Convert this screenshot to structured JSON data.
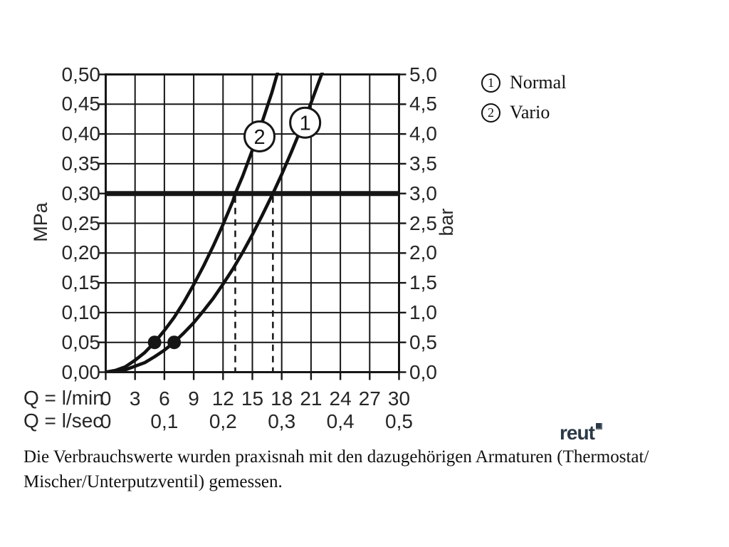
{
  "chart_data": {
    "type": "line",
    "title": "",
    "grid": true,
    "legend_position": "top-right",
    "x_axis": {
      "range_lmin": [
        0,
        30
      ],
      "primary_label": "Q = l/min",
      "primary_ticks": [
        "0",
        "3",
        "6",
        "9",
        "12",
        "15",
        "18",
        "21",
        "24",
        "27",
        "30"
      ],
      "secondary_label": "Q = l/sec",
      "secondary_ticks": [
        {
          "label": "0",
          "at_lmin": 0
        },
        {
          "label": "0,1",
          "at_lmin": 6
        },
        {
          "label": "0,2",
          "at_lmin": 12
        },
        {
          "label": "0,3",
          "at_lmin": 18
        },
        {
          "label": "0,4",
          "at_lmin": 24
        },
        {
          "label": "0,5",
          "at_lmin": 30
        }
      ]
    },
    "y_axis_left": {
      "label": "MPa",
      "range_mpa": [
        0,
        0.5
      ],
      "ticks": [
        "0,50",
        "0,45",
        "0,40",
        "0,35",
        "0,30",
        "0,25",
        "0,20",
        "0,15",
        "0,10",
        "0,05",
        "0,00"
      ]
    },
    "y_axis_right": {
      "label": "bar",
      "range_bar": [
        0,
        5
      ],
      "ticks": [
        "5,0",
        "4,5",
        "4,0",
        "3,5",
        "3,0",
        "2,5",
        "2,0",
        "1,5",
        "1,0",
        "0,5",
        "0,0"
      ]
    },
    "reference_line": {
      "mpa": 0.3,
      "bar": 3.0
    },
    "dashed_drop_lines_lmin": [
      13.25,
      17.1
    ],
    "series": [
      {
        "id": "1",
        "name": "Normal",
        "points_lmin_mpa": [
          [
            0,
            0
          ],
          [
            2,
            0.004
          ],
          [
            4,
            0.016
          ],
          [
            5,
            0.026
          ],
          [
            6,
            0.037
          ],
          [
            7,
            0.05
          ],
          [
            8,
            0.066
          ],
          [
            9,
            0.083
          ],
          [
            10,
            0.103
          ],
          [
            11,
            0.124
          ],
          [
            12,
            0.148
          ],
          [
            13,
            0.173
          ],
          [
            14,
            0.201
          ],
          [
            15,
            0.231
          ],
          [
            16,
            0.263
          ],
          [
            17.1,
            0.3
          ],
          [
            18,
            0.332
          ],
          [
            19,
            0.37
          ],
          [
            20,
            0.41
          ],
          [
            21,
            0.452
          ],
          [
            22.3,
            0.51
          ]
        ],
        "marker_lmin_mpa": [
          7,
          0.05
        ],
        "label_circle_center_lmin_mpa": [
          20.4,
          0.419
        ],
        "flow_at_3bar_lmin": 17.1
      },
      {
        "id": "2",
        "name": "Vario",
        "points_lmin_mpa": [
          [
            0,
            0
          ],
          [
            1,
            0.003
          ],
          [
            2,
            0.009
          ],
          [
            3,
            0.02
          ],
          [
            4,
            0.033
          ],
          [
            5,
            0.05
          ],
          [
            6,
            0.07
          ],
          [
            7,
            0.092
          ],
          [
            8,
            0.118
          ],
          [
            9,
            0.147
          ],
          [
            10,
            0.178
          ],
          [
            11,
            0.212
          ],
          [
            12,
            0.248
          ],
          [
            13,
            0.287
          ],
          [
            13.25,
            0.3
          ],
          [
            14,
            0.329
          ],
          [
            15,
            0.373
          ],
          [
            16,
            0.42
          ],
          [
            17,
            0.47
          ],
          [
            17.7,
            0.51
          ]
        ],
        "marker_lmin_mpa": [
          5,
          0.05
        ],
        "label_circle_center_lmin_mpa": [
          15.73,
          0.396
        ],
        "flow_at_3bar_lmin": 13.25
      }
    ],
    "colors": {
      "ink": "#161616",
      "curve": "#111111",
      "background": "#ffffff"
    }
  },
  "legend": {
    "items": [
      {
        "num": "1",
        "label": "Normal"
      },
      {
        "num": "2",
        "label": "Vario"
      }
    ]
  },
  "caption": {
    "line1": "Die Verbrauchswerte wurden praxisnah mit den dazugehörigen Armaturen (Thermostat/",
    "line2": "Mischer/Unterputzventil) gemessen."
  },
  "logo": {
    "text": "reut",
    "color": "#2c3947"
  }
}
